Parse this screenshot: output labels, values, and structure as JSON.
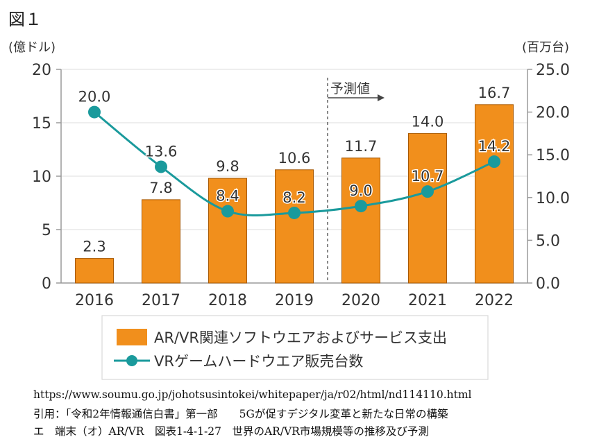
{
  "figure_label": "図１",
  "chart_data": {
    "type": "bar+line",
    "categories": [
      "2016",
      "2017",
      "2018",
      "2019",
      "2020",
      "2021",
      "2022"
    ],
    "series": [
      {
        "name": "AR/VR関連ソフトウエアおよびサービス支出",
        "kind": "bar",
        "axis": "left",
        "values": [
          2.3,
          7.8,
          9.8,
          10.6,
          11.7,
          14.0,
          16.7
        ],
        "labels": [
          "2.3",
          "7.8",
          "9.8",
          "10.6",
          "11.7",
          "14.0",
          "16.7"
        ],
        "color": "#f18f1c"
      },
      {
        "name": "VRゲームハードウエア販売台数",
        "kind": "line",
        "axis": "right",
        "values": [
          20.0,
          13.6,
          8.4,
          8.2,
          9.0,
          10.7,
          14.2
        ],
        "labels": [
          "20.0",
          "13.6",
          "8.4",
          "8.2",
          "9.0",
          "10.7",
          "14.2"
        ],
        "color": "#1a9a9c"
      }
    ],
    "left_axis": {
      "unit": "(億ドル)",
      "ylim": [
        0,
        20
      ],
      "ticks": [
        "0",
        "5",
        "10",
        "15",
        "20"
      ]
    },
    "right_axis": {
      "unit": "(百万台)",
      "ylim": [
        0,
        25
      ],
      "ticks": [
        "0.0",
        "5.0",
        "10.0",
        "15.0",
        "20.0",
        "25.0"
      ]
    },
    "forecast_annotation": "予測値",
    "forecast_starts_after": "2019"
  },
  "caption_lines": [
    "https://www.soumu.go.jp/johotsusintokei/whitepaper/ja/r02/html/nd114110.html",
    "引用：「令和2年情報通信白書」第一部　　5Gが促すデジタル変革と新たな日常の構築",
    "エ　端末（オ）AR/VR　図表1-4-1-27　世界のAR/VR市場規模等の推移及び予測"
  ]
}
